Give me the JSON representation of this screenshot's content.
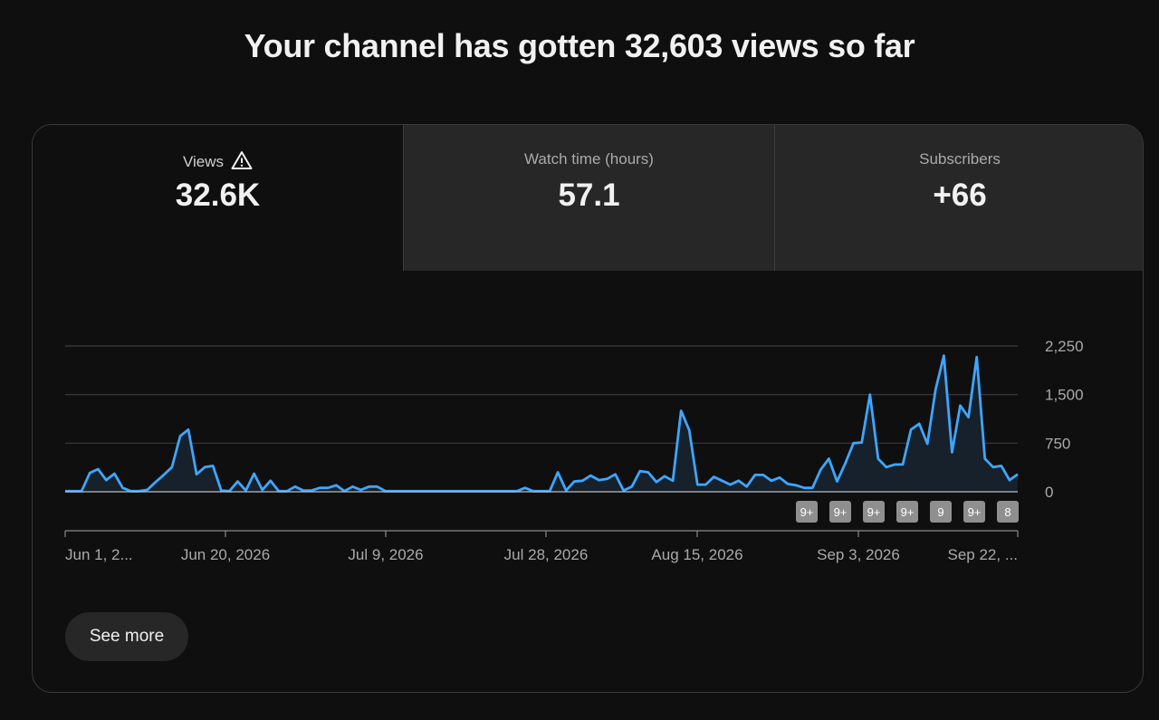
{
  "headline": "Your channel has gotten 32,603 views so far",
  "tabs": [
    {
      "label": "Views",
      "value": "32.6K",
      "icon": "warning-icon"
    },
    {
      "label": "Watch time (hours)",
      "value": "57.1"
    },
    {
      "label": "Subscribers",
      "value": "+66"
    }
  ],
  "see_more_label": "See more",
  "colors": {
    "line": "#3ea6ff",
    "background": "#0f0f0f",
    "tab_inactive": "#272727"
  },
  "chart_data": {
    "type": "area",
    "series": [
      {
        "values": [
          10,
          10,
          10,
          290,
          350,
          180,
          280,
          60,
          10,
          10,
          30,
          150,
          260,
          380,
          860,
          960,
          270,
          380,
          400,
          20,
          10,
          160,
          20,
          280,
          30,
          170,
          10,
          10,
          80,
          20,
          20,
          60,
          60,
          100,
          10,
          80,
          30,
          80,
          80,
          10,
          10,
          10,
          10,
          10,
          10,
          10,
          10,
          10,
          10,
          10,
          10,
          10,
          10,
          10,
          10,
          10,
          60,
          10,
          10,
          10,
          300,
          20,
          160,
          170,
          250,
          180,
          200,
          270,
          20,
          80,
          320,
          300,
          150,
          240,
          170,
          1250,
          950,
          110,
          110,
          230,
          170,
          110,
          170,
          80,
          260,
          260,
          170,
          220,
          120,
          100,
          60,
          60,
          340,
          510,
          160,
          440,
          750,
          760,
          1500,
          510,
          380,
          420,
          420,
          960,
          1050,
          740,
          1580,
          2100,
          610,
          1330,
          1150,
          2080,
          510,
          380,
          400,
          180,
          270
        ]
      }
    ],
    "x_tick_labels": [
      "Jun 1, 2...",
      "Jun 20, 2026",
      "Jul 9, 2026",
      "Jul 28, 2026",
      "Aug 15, 2026",
      "Sep 3, 2026",
      "Sep 22, ..."
    ],
    "y_tick_labels": [
      "0",
      "750",
      "1,500",
      "2,250"
    ],
    "y_ticks": [
      0,
      750,
      1500,
      2250
    ],
    "ylim": [
      0,
      2250
    ],
    "grid": true,
    "markers": [
      "9+",
      "9+",
      "9+",
      "9+",
      "9",
      "9+",
      "8"
    ]
  }
}
